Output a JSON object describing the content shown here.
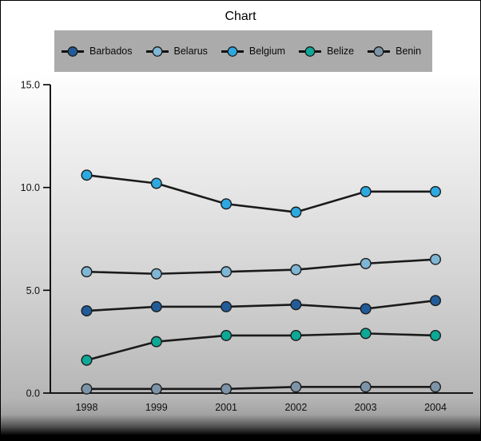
{
  "title": "Chart",
  "legend": {
    "background": "#ababab",
    "items": [
      {
        "label": "Barbados",
        "color": "#215c99"
      },
      {
        "label": "Belarus",
        "color": "#7fb5d5"
      },
      {
        "label": "Belgium",
        "color": "#2da9e1"
      },
      {
        "label": "Belize",
        "color": "#0da896"
      },
      {
        "label": "Benin",
        "color": "#7d94a8"
      }
    ]
  },
  "chart_data": {
    "type": "line",
    "title": "Chart",
    "xlabel": "",
    "ylabel": "",
    "categories": [
      "1998",
      "1999",
      "2001",
      "2002",
      "2003",
      "2004"
    ],
    "series": [
      {
        "name": "Barbados",
        "color": "#215c99",
        "values": [
          4.0,
          4.2,
          4.2,
          4.3,
          4.1,
          4.5
        ]
      },
      {
        "name": "Belarus",
        "color": "#7fb5d5",
        "values": [
          5.9,
          5.8,
          5.9,
          6.0,
          6.3,
          6.5
        ]
      },
      {
        "name": "Belgium",
        "color": "#2da9e1",
        "values": [
          10.6,
          10.2,
          9.2,
          8.8,
          9.8,
          9.8
        ]
      },
      {
        "name": "Belize",
        "color": "#0da896",
        "values": [
          1.6,
          2.5,
          2.8,
          2.8,
          2.9,
          2.8
        ]
      },
      {
        "name": "Benin",
        "color": "#7d94a8",
        "values": [
          0.2,
          0.2,
          0.2,
          0.3,
          0.3,
          0.3
        ]
      }
    ],
    "ylim": [
      0,
      15
    ],
    "yticks": [
      0.0,
      5.0,
      10.0,
      15.0
    ],
    "ytick_labels": [
      "0.0",
      "5.0",
      "10.0",
      "15.0"
    ],
    "grid": false,
    "legend_position": "top",
    "line_color": "#1a1a1a",
    "axis_color": "#000000",
    "marker_outline": "#1c1c1c"
  }
}
